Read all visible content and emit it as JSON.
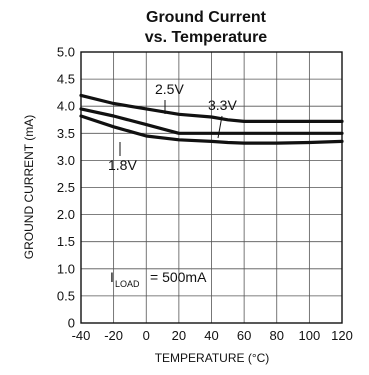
{
  "chart_data": {
    "type": "line",
    "title": "Ground Current",
    "subtitle": "vs. Temperature",
    "xlabel": "TEMPERATURE (°C)",
    "ylabel": "GROUND CURRENT (mA)",
    "xlim": [
      -40,
      120
    ],
    "ylim": [
      0,
      5
    ],
    "xticks": [
      "-40",
      "-20",
      "0",
      "20",
      "40",
      "60",
      "80",
      "100",
      "120"
    ],
    "yticks": [
      "0",
      "0.5",
      "1.0",
      "1.5",
      "2.0",
      "2.5",
      "3.0",
      "3.5",
      "4.0",
      "4.5",
      "5.0"
    ],
    "grid": true,
    "series": [
      {
        "name": "2.5V",
        "x": [
          -40,
          -20,
          0,
          20,
          40,
          50,
          60,
          80,
          100,
          120
        ],
        "y": [
          4.2,
          4.05,
          3.95,
          3.85,
          3.8,
          3.75,
          3.72,
          3.72,
          3.72,
          3.72
        ]
      },
      {
        "name": "3.3V",
        "x": [
          -40,
          -20,
          0,
          20,
          40,
          50,
          60,
          80,
          100,
          120
        ],
        "y": [
          3.95,
          3.82,
          3.66,
          3.5,
          3.5,
          3.5,
          3.5,
          3.5,
          3.5,
          3.5
        ]
      },
      {
        "name": "1.8V",
        "x": [
          -40,
          -20,
          0,
          20,
          40,
          50,
          60,
          80,
          100,
          120
        ],
        "y": [
          3.82,
          3.62,
          3.45,
          3.38,
          3.35,
          3.33,
          3.32,
          3.32,
          3.33,
          3.35
        ]
      }
    ],
    "annotations": {
      "load_main": "I",
      "load_sub": "LOAD",
      "load_value": "= 500mA"
    }
  }
}
